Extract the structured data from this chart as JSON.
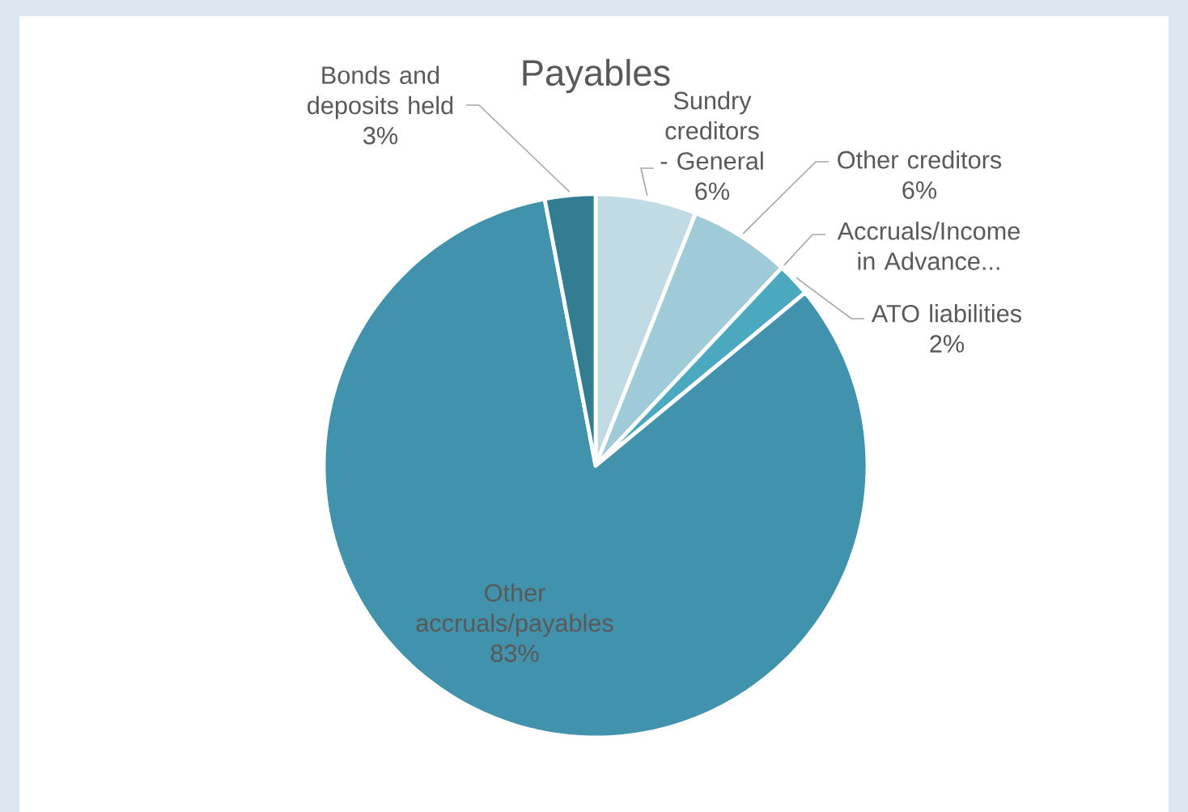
{
  "chart_data": {
    "type": "pie",
    "title": "Payables",
    "categories": [
      "Sundry creditors - General",
      "Other creditors",
      "Accruals/Income in Advance...",
      "ATO liabilities",
      "Other accruals/payables",
      "Bonds and deposits held"
    ],
    "values": [
      6,
      6,
      0,
      2,
      83,
      3
    ],
    "value_labels": [
      "6%",
      "6%",
      null,
      "2%",
      "83%",
      "3%"
    ],
    "colors": [
      "#c0dbe3",
      "#9fcad8",
      "#62b5c9",
      "#4aa8bf",
      "#4193ad",
      "#327d91"
    ]
  }
}
